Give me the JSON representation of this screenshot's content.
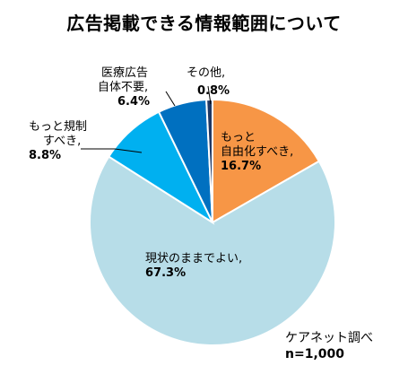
{
  "chart_data": {
    "type": "pie",
    "title": "広告掲載できる情報範囲について",
    "slices": [
      {
        "label": "もっと自由化すべき",
        "display": [
          "もっと",
          "自由化すべき,"
        ],
        "value": 16.7,
        "value_text": "16.7%",
        "color": "#F79646"
      },
      {
        "label": "現状のままでよい",
        "display": [
          "現状のままでよい,"
        ],
        "value": 67.3,
        "value_text": "67.3%",
        "color": "#B7DDE8"
      },
      {
        "label": "もっと規制すべき",
        "display": [
          "もっと規制",
          "すべき,"
        ],
        "value": 8.8,
        "value_text": "8.8%",
        "color": "#00B0F0"
      },
      {
        "label": "医療広告自体不要",
        "display": [
          "医療広告",
          "自体不要,"
        ],
        "value": 6.4,
        "value_text": "6.4%",
        "color": "#0070C0"
      },
      {
        "label": "その他",
        "display": [
          "その他,"
        ],
        "value": 0.8,
        "value_text": "0.8%",
        "color": "#1F3864"
      }
    ],
    "start": "12 o'clock",
    "direction": "clockwise"
  },
  "note": {
    "source": "ケアネット調べ",
    "n": "n=1,000"
  }
}
